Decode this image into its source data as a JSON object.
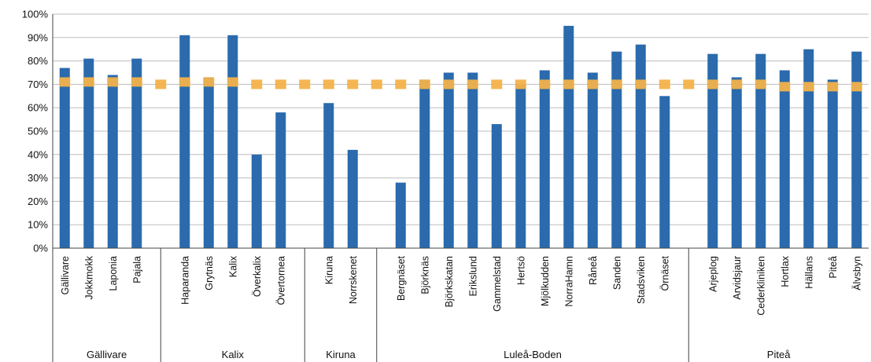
{
  "chart_data": {
    "type": "bar",
    "title": "",
    "xlabel": "",
    "ylabel": "",
    "ylim": [
      0,
      100
    ],
    "y_ticks": [
      "0%",
      "10%",
      "20%",
      "30%",
      "40%",
      "50%",
      "60%",
      "70%",
      "80%",
      "90%",
      "100%"
    ],
    "grid": true,
    "legend": "none",
    "colors": {
      "bar": "#2a6aad",
      "target": "#f2b24a",
      "grid": "#bdbdbd",
      "axis": "#444444"
    },
    "groups": [
      {
        "name": "Gällivare",
        "categories": [
          "Gällivare",
          "Jokkmokk",
          "Laponia",
          "Pajala"
        ],
        "values": [
          77,
          81,
          74,
          81
        ]
      },
      {
        "name": "Kalix",
        "categories": [
          "Haparanda",
          "Grytnäs",
          "Kalix",
          "Överkalix",
          "Övertornea"
        ],
        "values": [
          91,
          73,
          91,
          40,
          58
        ]
      },
      {
        "name": "Kiruna",
        "categories": [
          "Kiruna",
          "Norrskenet"
        ],
        "values": [
          62,
          42
        ]
      },
      {
        "name": "Luleå-Boden",
        "categories": [
          "Bergnäset",
          "Björknäs",
          "Björkskatan",
          "Erikslund",
          "Gammelstad",
          "Hertsö",
          "Mjölkudden",
          "NorraHamn",
          "Råneå",
          "Sanden",
          "Stadsviken",
          "Örnäset"
        ],
        "values": [
          28,
          72,
          75,
          75,
          53,
          70,
          76,
          95,
          75,
          84,
          87,
          65
        ]
      },
      {
        "name": "Piteå",
        "categories": [
          "Arjeplog",
          "Arvidsjaur",
          "Cederkliniken",
          "Hortlax",
          "Hällans",
          "Piteå",
          "Älvsbyn"
        ],
        "values": [
          83,
          73,
          83,
          76,
          85,
          72,
          84
        ]
      }
    ],
    "target_series": {
      "values": [
        71,
        71,
        71,
        71,
        70,
        71,
        71,
        71,
        70,
        70,
        70,
        70,
        70,
        70,
        70,
        70,
        70,
        70,
        70,
        70,
        70,
        70,
        70,
        70,
        70,
        70,
        70,
        70,
        70,
        70,
        69,
        69,
        69,
        69,
        69,
        69,
        69,
        69,
        69,
        69,
        69
      ]
    }
  }
}
